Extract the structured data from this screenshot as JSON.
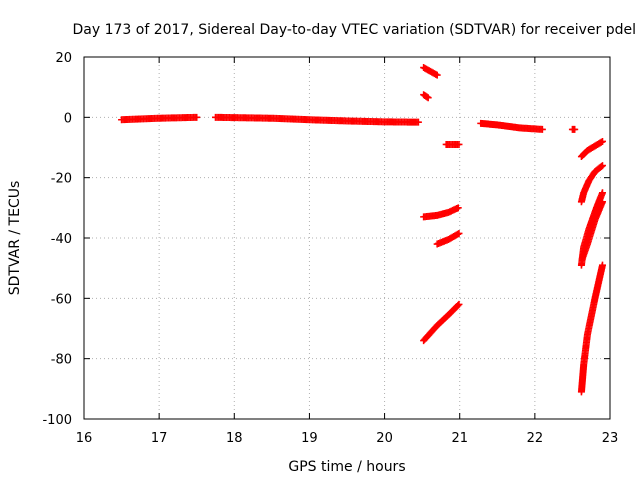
{
  "chart_data": {
    "type": "scatter",
    "title": "Day 173 of 2017, Sidereal Day-to-day VTEC variation (SDTVAR) for receiver pdel",
    "xlabel": "GPS time / hours",
    "ylabel": "SDTVAR / TECUs",
    "xlim": [
      16,
      23
    ],
    "ylim": [
      -100,
      20
    ],
    "xticks": [
      "16",
      "17",
      "18",
      "19",
      "20",
      "21",
      "22",
      "23"
    ],
    "yticks": [
      "-100",
      "-80",
      "-60",
      "-40",
      "-20",
      "0",
      "20"
    ],
    "grid": true,
    "marker": "+",
    "color": "#ff0000",
    "segments": [
      {
        "x": [
          16.5,
          17.0,
          17.5
        ],
        "y": [
          -0.8,
          -0.3,
          0.0
        ]
      },
      {
        "x": [
          17.75,
          18.5,
          19.0,
          19.5,
          20.0,
          20.45
        ],
        "y": [
          0.0,
          -0.3,
          -0.8,
          -1.2,
          -1.5,
          -1.6
        ]
      },
      {
        "x": [
          20.52,
          20.7
        ],
        "y": [
          16.5,
          14.0
        ]
      },
      {
        "x": [
          20.52,
          20.58
        ],
        "y": [
          7.5,
          6.5
        ]
      },
      {
        "x": [
          20.52,
          20.7,
          20.85,
          20.98
        ],
        "y": [
          -33.0,
          -32.5,
          -31.5,
          -30.0
        ]
      },
      {
        "x": [
          20.52,
          20.7,
          20.85,
          20.99
        ],
        "y": [
          -74.0,
          -69.0,
          -65.5,
          -62.0
        ]
      },
      {
        "x": [
          20.7,
          20.85,
          20.99
        ],
        "y": [
          -42.0,
          -40.5,
          -38.5
        ]
      },
      {
        "x": [
          20.82,
          20.99
        ],
        "y": [
          -9.0,
          -9.0
        ]
      },
      {
        "x": [
          21.28,
          21.5,
          21.8,
          22.1
        ],
        "y": [
          -2.0,
          -2.5,
          -3.5,
          -4.0
        ]
      },
      {
        "x": [
          22.5,
          22.53
        ],
        "y": [
          -4.0,
          -4.0
        ]
      },
      {
        "x": [
          22.62,
          22.7,
          22.8,
          22.9
        ],
        "y": [
          -13.0,
          -11.0,
          -9.5,
          -8.0
        ]
      },
      {
        "x": [
          22.62,
          22.65,
          22.72,
          22.8,
          22.9
        ],
        "y": [
          -28.0,
          -25.0,
          -21.0,
          -18.0,
          -16.0
        ]
      },
      {
        "x": [
          22.62,
          22.65,
          22.72,
          22.82,
          22.9
        ],
        "y": [
          -49.0,
          -43.0,
          -37.0,
          -30.0,
          -25.0
        ]
      },
      {
        "x": [
          22.63,
          22.7,
          22.8,
          22.9
        ],
        "y": [
          -47.0,
          -42.0,
          -34.0,
          -28.0
        ]
      },
      {
        "x": [
          22.62,
          22.65,
          22.7,
          22.8,
          22.9
        ],
        "y": [
          -91.0,
          -82.0,
          -72.0,
          -60.0,
          -49.0
        ]
      }
    ]
  }
}
